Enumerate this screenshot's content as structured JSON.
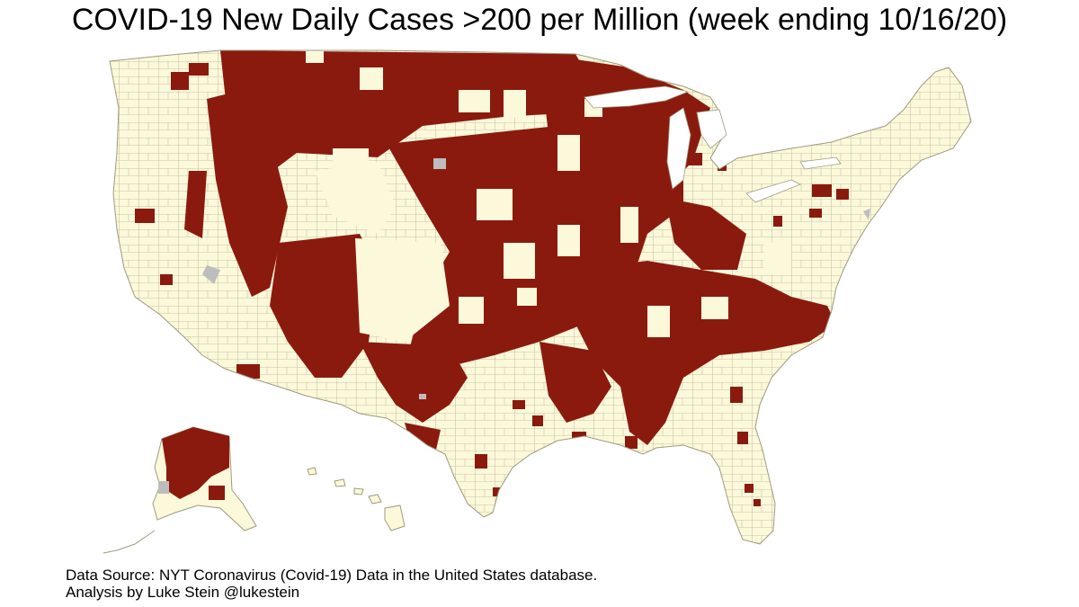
{
  "title": "COVID-19 New Daily Cases >200 per Million (week ending 10/16/20)",
  "footer": {
    "source": "Data Source: NYT Coronavirus (Covid-19) Data in the United States database.",
    "credit": "Analysis by Luke Stein @lukestein"
  },
  "legend_colors": {
    "above_threshold": "#8B1A0E",
    "below_threshold": "#FCF8DA",
    "no_data": "#BDBDBD",
    "county_border": "#B8B49A"
  }
}
